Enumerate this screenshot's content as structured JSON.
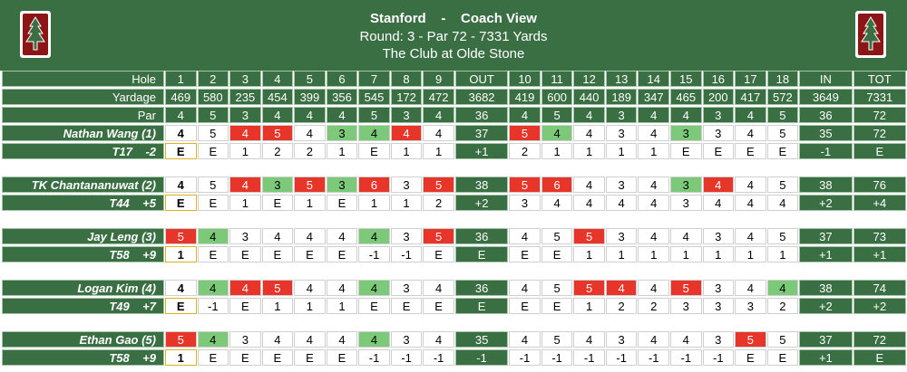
{
  "header": {
    "team": "Stanford",
    "separator": "-",
    "view": "Coach View",
    "round_line": "Round: 3 - Par 72 - 7331 Yards",
    "course": "The Club at Olde Stone",
    "logo_icon": "stanford-tree-logo",
    "bg_color": "#3a6e43"
  },
  "labels": {
    "hole": "Hole",
    "yardage": "Yardage",
    "par": "Par"
  },
  "columns": [
    "1",
    "2",
    "3",
    "4",
    "5",
    "6",
    "7",
    "8",
    "9",
    "OUT",
    "10",
    "11",
    "12",
    "13",
    "14",
    "15",
    "16",
    "17",
    "18",
    "IN",
    "TOT"
  ],
  "yardage": [
    "469",
    "580",
    "235",
    "454",
    "399",
    "356",
    "545",
    "172",
    "472",
    "3682",
    "419",
    "600",
    "440",
    "189",
    "347",
    "465",
    "200",
    "417",
    "572",
    "3649",
    "7331"
  ],
  "par": [
    "4",
    "5",
    "3",
    "4",
    "4",
    "4",
    "5",
    "3",
    "4",
    "36",
    "4",
    "5",
    "4",
    "3",
    "4",
    "4",
    "3",
    "4",
    "5",
    "36",
    "72"
  ],
  "colors": {
    "birdie": "#7cc97a",
    "bogey": "#e8352a",
    "green": "#3a6e43"
  },
  "players": [
    {
      "name": "Nathan Wang (1)",
      "position": "T17",
      "to_par": "-2",
      "scores": [
        "4",
        "5",
        "4",
        "5",
        "4",
        "3",
        "4",
        "4",
        "4",
        "37",
        "5",
        "4",
        "4",
        "3",
        "4",
        "3",
        "3",
        "4",
        "5",
        "35",
        "72"
      ],
      "running": [
        "E",
        "E",
        "1",
        "2",
        "2",
        "1",
        "E",
        "1",
        "1",
        "+1",
        "2",
        "1",
        "1",
        "1",
        "1",
        "E",
        "E",
        "E",
        "E",
        "-1",
        "E"
      ]
    },
    {
      "name": "TK Chantananuwat (2)",
      "position": "T44",
      "to_par": "+5",
      "scores": [
        "4",
        "5",
        "4",
        "3",
        "5",
        "3",
        "6",
        "3",
        "5",
        "38",
        "5",
        "6",
        "4",
        "3",
        "4",
        "3",
        "4",
        "4",
        "5",
        "38",
        "76"
      ],
      "running": [
        "E",
        "E",
        "1",
        "E",
        "1",
        "E",
        "1",
        "1",
        "2",
        "+2",
        "3",
        "4",
        "4",
        "4",
        "4",
        "3",
        "4",
        "4",
        "4",
        "+2",
        "+4"
      ]
    },
    {
      "name": "Jay Leng (3)",
      "position": "T58",
      "to_par": "+9",
      "scores": [
        "5",
        "4",
        "3",
        "4",
        "4",
        "4",
        "4",
        "3",
        "5",
        "36",
        "4",
        "5",
        "5",
        "3",
        "4",
        "4",
        "3",
        "4",
        "5",
        "37",
        "73"
      ],
      "running": [
        "1",
        "E",
        "E",
        "E",
        "E",
        "E",
        "-1",
        "-1",
        "E",
        "E",
        "E",
        "E",
        "1",
        "1",
        "1",
        "1",
        "1",
        "1",
        "1",
        "+1",
        "+1"
      ]
    },
    {
      "name": "Logan Kim (4)",
      "position": "T49",
      "to_par": "+7",
      "scores": [
        "4",
        "4",
        "4",
        "5",
        "4",
        "4",
        "4",
        "3",
        "4",
        "36",
        "4",
        "5",
        "5",
        "4",
        "4",
        "5",
        "3",
        "4",
        "4",
        "38",
        "74"
      ],
      "running": [
        "E",
        "-1",
        "E",
        "1",
        "1",
        "1",
        "E",
        "E",
        "E",
        "E",
        "E",
        "E",
        "1",
        "2",
        "2",
        "3",
        "3",
        "3",
        "2",
        "+2",
        "+2"
      ]
    },
    {
      "name": "Ethan Gao (5)",
      "position": "T58",
      "to_par": "+9",
      "scores": [
        "5",
        "4",
        "3",
        "4",
        "4",
        "4",
        "4",
        "3",
        "4",
        "35",
        "4",
        "5",
        "4",
        "3",
        "4",
        "4",
        "3",
        "5",
        "5",
        "37",
        "72"
      ],
      "running": [
        "1",
        "E",
        "E",
        "E",
        "E",
        "E",
        "-1",
        "-1",
        "-1",
        "-1",
        "-1",
        "-1",
        "-1",
        "-1",
        "-1",
        "-1",
        "-1",
        "E",
        "E",
        "+1",
        "E"
      ]
    }
  ]
}
